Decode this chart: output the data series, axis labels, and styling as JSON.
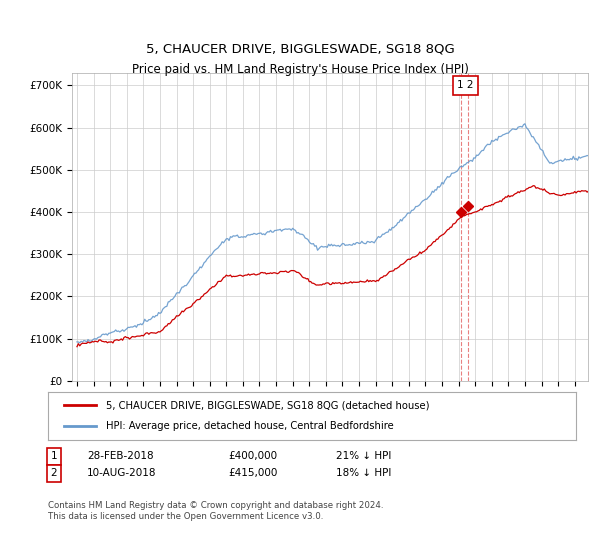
{
  "title": "5, CHAUCER DRIVE, BIGGLESWADE, SG18 8QG",
  "subtitle": "Price paid vs. HM Land Registry's House Price Index (HPI)",
  "ylabel_ticks": [
    "£0",
    "£100K",
    "£200K",
    "£300K",
    "£400K",
    "£500K",
    "£600K",
    "£700K"
  ],
  "ytick_values": [
    0,
    100000,
    200000,
    300000,
    400000,
    500000,
    600000,
    700000
  ],
  "ylim": [
    0,
    730000
  ],
  "legend_label_red": "5, CHAUCER DRIVE, BIGGLESWADE, SG18 8QG (detached house)",
  "legend_label_blue": "HPI: Average price, detached house, Central Bedfordshire",
  "annotation1_date": "28-FEB-2018",
  "annotation1_price": "£400,000",
  "annotation1_hpi": "21% ↓ HPI",
  "annotation2_date": "10-AUG-2018",
  "annotation2_price": "£415,000",
  "annotation2_hpi": "18% ↓ HPI",
  "footer": "Contains HM Land Registry data © Crown copyright and database right 2024.\nThis data is licensed under the Open Government Licence v3.0.",
  "red_color": "#cc0000",
  "blue_color": "#6699cc",
  "vline_color": "#e88080",
  "grid_color": "#cccccc",
  "background_color": "#ffffff",
  "t1_year": 2018.167,
  "t2_year": 2018.583,
  "t1_price": 400000,
  "t2_price": 415000
}
